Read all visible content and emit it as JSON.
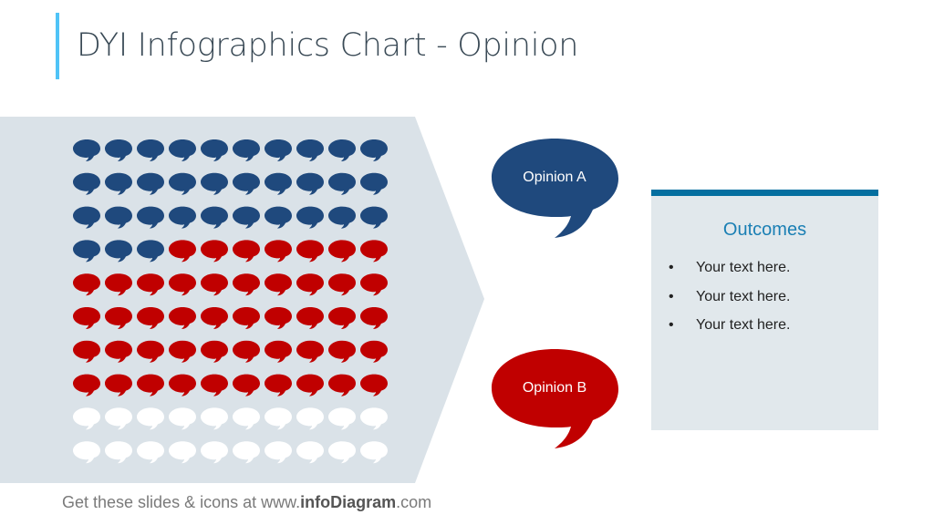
{
  "title": "DYI Infographics Chart - Opinion",
  "colors": {
    "opinion_a": "#1f497d",
    "opinion_b": "#c00000",
    "neutral": "#ffffff",
    "panel": "#dae2e8",
    "accent": "#4fc3f7",
    "outcomes_bar": "#046fa0"
  },
  "grid": {
    "rows": 10,
    "cols": 10,
    "opinion_a_count": 33,
    "opinion_b_count": 47,
    "neutral_count": 20,
    "icon": "speech-bubble-icon"
  },
  "opinions": [
    {
      "label": "Opinion A"
    },
    {
      "label": "Opinion B"
    }
  ],
  "outcomes": {
    "title": "Outcomes",
    "items": [
      "Your text here.",
      "Your text here.",
      "Your text here."
    ]
  },
  "footer": {
    "prefix": "Get these slides & icons at www.",
    "brand": "infoDiagram",
    "suffix": ".com"
  }
}
